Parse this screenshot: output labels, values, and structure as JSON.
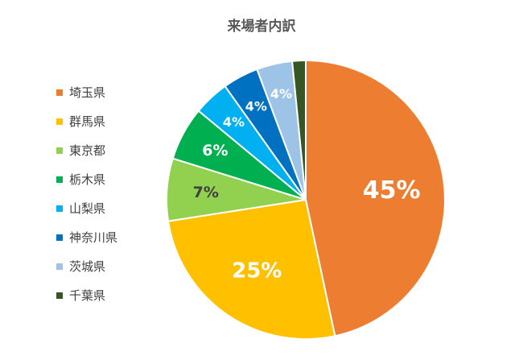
{
  "chart_data": {
    "type": "pie",
    "title": "来場者内訳",
    "categories": [
      "埼玉県",
      "群馬県",
      "東京都",
      "栃木県",
      "山梨県",
      "神奈川県",
      "茨城県",
      "千葉県"
    ],
    "values": [
      45,
      25,
      7,
      6,
      4,
      4,
      4,
      1.5
    ],
    "data_labels": [
      "45%",
      "25%",
      "7%",
      "6%",
      "4%",
      "4%",
      "4%",
      ""
    ],
    "colors": [
      "#ED7D31",
      "#FFC000",
      "#92D050",
      "#00B050",
      "#00B0F0",
      "#0070C0",
      "#9DC3E6",
      "#375623"
    ],
    "legend_position": "left"
  }
}
